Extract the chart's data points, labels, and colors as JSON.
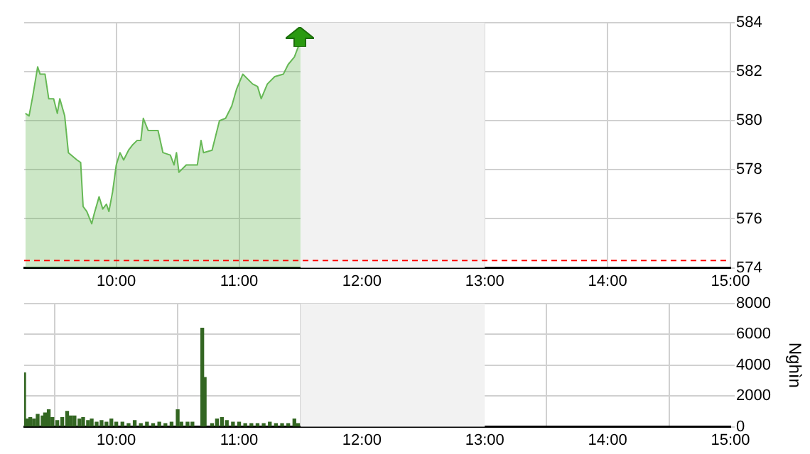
{
  "chart_data": [
    {
      "type": "area",
      "xlim": [
        9.25,
        15
      ],
      "xticks": [
        {
          "value": 10,
          "label": "10:00"
        },
        {
          "value": 11,
          "label": "11:00"
        },
        {
          "value": 12,
          "label": "12:00"
        },
        {
          "value": 13,
          "label": "13:00"
        },
        {
          "value": 14,
          "label": "14:00"
        },
        {
          "value": 15,
          "label": "15:00"
        }
      ],
      "ylim": [
        574,
        584
      ],
      "yticks": [
        574,
        576,
        578,
        580,
        582,
        584
      ],
      "grid": true,
      "legend": false,
      "x": [
        9.26,
        9.29,
        9.32,
        9.36,
        9.38,
        9.42,
        9.45,
        9.49,
        9.52,
        9.54,
        9.58,
        9.61,
        9.68,
        9.71,
        9.73,
        9.76,
        9.8,
        9.82,
        9.86,
        9.89,
        9.92,
        9.94,
        9.97,
        10.0,
        10.03,
        10.06,
        10.1,
        10.13,
        10.17,
        10.2,
        10.22,
        10.26,
        10.34,
        10.38,
        10.44,
        10.47,
        10.49,
        10.51,
        10.57,
        10.63,
        10.66,
        10.69,
        10.71,
        10.78,
        10.84,
        10.89,
        10.94,
        10.98,
        11.03,
        11.11,
        11.15,
        11.18,
        11.23,
        11.29,
        11.36,
        11.4,
        11.45,
        11.48,
        11.5
      ],
      "series": [
        {
          "color": "#66b855",
          "values": [
            580.3,
            580.2,
            581.0,
            582.2,
            581.9,
            581.9,
            580.9,
            580.9,
            580.3,
            580.9,
            580.2,
            578.7,
            578.4,
            578.3,
            576.5,
            576.3,
            575.8,
            576.2,
            576.9,
            576.4,
            576.6,
            576.3,
            577.1,
            578.2,
            578.7,
            578.4,
            578.8,
            579.0,
            579.2,
            579.2,
            580.1,
            579.6,
            579.6,
            578.7,
            578.6,
            578.2,
            578.7,
            577.9,
            578.2,
            578.2,
            578.2,
            579.2,
            578.7,
            578.8,
            580.0,
            580.1,
            580.6,
            581.3,
            581.9,
            581.5,
            581.4,
            580.9,
            581.5,
            581.8,
            581.9,
            582.3,
            582.6,
            583.0,
            583.1
          ]
        }
      ],
      "bands": [
        {
          "axis": "x",
          "from": 11.5,
          "to": 13,
          "color": "#f2f2f2"
        }
      ],
      "ref_lines": [
        {
          "axis": "y",
          "value": 574.3,
          "color": "#ff0000",
          "line_style": "dashed"
        }
      ]
    },
    {
      "type": "bar",
      "ylabel": "Nghìn",
      "xlim": [
        9.25,
        15
      ],
      "xticks": [
        {
          "value": 10,
          "label": "10:00"
        },
        {
          "value": 11,
          "label": "11:00"
        },
        {
          "value": 12,
          "label": "12:00"
        },
        {
          "value": 13,
          "label": "13:00"
        },
        {
          "value": 14,
          "label": "14:00"
        },
        {
          "value": 15,
          "label": "15:00"
        }
      ],
      "ylim": [
        0,
        8000
      ],
      "yticks": [
        0,
        2000,
        4000,
        6000,
        8000
      ],
      "grid": true,
      "legend": false,
      "x": [
        9.25,
        9.27,
        9.3,
        9.33,
        9.36,
        9.4,
        9.42,
        9.45,
        9.48,
        9.52,
        9.56,
        9.6,
        9.63,
        9.66,
        9.7,
        9.73,
        9.77,
        9.8,
        9.84,
        9.88,
        9.92,
        9.96,
        10.0,
        10.05,
        10.1,
        10.15,
        10.2,
        10.25,
        10.3,
        10.35,
        10.4,
        10.45,
        10.5,
        10.53,
        10.58,
        10.62,
        10.7,
        10.72,
        10.78,
        10.82,
        10.86,
        10.9,
        10.95,
        11.0,
        11.05,
        11.1,
        11.15,
        11.2,
        11.25,
        11.3,
        11.35,
        11.4,
        11.45,
        11.48
      ],
      "series": [
        {
          "color": "#336622",
          "values": [
            3500,
            500,
            600,
            500,
            800,
            700,
            900,
            1100,
            600,
            400,
            600,
            1000,
            700,
            700,
            500,
            600,
            400,
            500,
            300,
            400,
            300,
            500,
            300,
            300,
            200,
            400,
            200,
            300,
            200,
            300,
            200,
            300,
            1100,
            300,
            300,
            300,
            6400,
            3200,
            200,
            500,
            600,
            400,
            300,
            300,
            200,
            200,
            200,
            200,
            300,
            200,
            200,
            200,
            500,
            200
          ]
        }
      ],
      "bands": [
        {
          "axis": "x",
          "from": 11.5,
          "to": 13,
          "color": "#f2f2f2"
        }
      ]
    }
  ]
}
